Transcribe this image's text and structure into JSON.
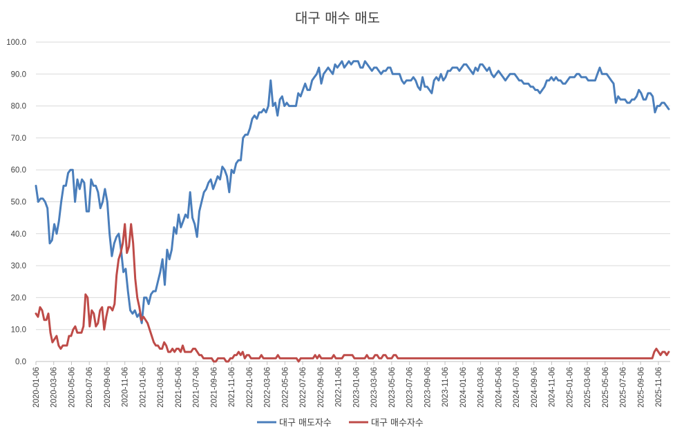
{
  "chart_data": {
    "type": "line",
    "title": "대구 매수 매도",
    "xlabel": "",
    "ylabel": "",
    "ylim": [
      0,
      100
    ],
    "ytick_labels": [
      "0.0",
      "10.0",
      "20.0",
      "30.0",
      "40.0",
      "50.0",
      "60.0",
      "70.0",
      "80.0",
      "90.0",
      "100.0"
    ],
    "x_tick_labels": [
      "2020-01-06",
      "2020-03-06",
      "2020-05-06",
      "2020-07-06",
      "2020-09-06",
      "2020-11-06",
      "2021-01-06",
      "2021-03-06",
      "2021-05-06",
      "2021-07-06",
      "2021-09-06",
      "2021-11-06",
      "2022-01-06",
      "2022-03-06",
      "2022-05-06",
      "2022-07-06",
      "2022-09-06",
      "2022-11-06",
      "2023-01-06",
      "2023-03-06",
      "2023-05-06",
      "2023-07-06",
      "2023-09-06",
      "2023-11-06",
      "2024-01-06",
      "2024-03-06",
      "2024-05-06",
      "2024-07-06",
      "2024-09-06",
      "2024-11-06",
      "2025-01-06",
      "2025-03-06",
      "2025-05-06",
      "2025-07-06",
      "2025-09-06",
      "2025-11-06"
    ],
    "legend_position": "bottom",
    "grid": true,
    "series": [
      {
        "name": "대구 매도자수",
        "color": "#4A7EBB",
        "values": [
          55,
          50,
          51,
          51,
          50,
          48,
          37,
          38,
          43,
          40,
          44,
          50,
          55,
          55,
          59,
          60,
          60,
          50,
          57,
          54,
          57,
          56,
          47,
          47,
          57,
          55,
          55,
          53,
          48,
          50,
          54,
          50,
          40,
          33,
          37,
          39,
          40,
          35,
          28,
          29,
          22,
          16,
          15,
          16,
          14,
          15,
          12,
          20,
          20,
          18,
          21,
          22,
          22,
          25,
          28,
          32,
          24,
          35,
          32,
          35,
          42,
          40,
          46,
          42,
          44,
          46,
          45,
          53,
          45,
          43,
          39,
          47,
          50,
          53,
          54,
          56,
          57,
          54,
          56,
          58,
          57,
          61,
          60,
          58,
          53,
          60,
          59,
          62,
          63,
          63,
          70,
          71,
          71,
          73,
          76,
          77,
          76,
          78,
          78,
          79,
          78,
          80,
          88,
          80,
          81,
          77,
          82,
          83,
          80,
          81,
          80,
          80,
          80,
          80,
          84,
          83,
          85,
          87,
          85,
          85,
          88,
          89,
          90,
          92,
          87,
          90,
          91,
          92,
          91,
          90,
          93,
          92,
          93,
          94,
          92,
          93,
          94,
          93,
          94,
          94,
          94,
          92,
          92,
          94,
          93,
          92,
          91,
          92,
          92,
          91,
          90,
          91,
          91,
          92,
          92,
          90,
          90,
          90,
          90,
          88,
          87,
          88,
          88,
          88,
          89,
          88,
          86,
          85,
          89,
          86,
          86,
          85,
          84,
          88,
          89,
          88,
          90,
          88,
          89,
          91,
          91,
          92,
          92,
          92,
          91,
          92,
          93,
          93,
          92,
          91,
          90,
          92,
          91,
          93,
          93,
          92,
          91,
          92,
          90,
          89,
          90,
          91,
          90,
          89,
          88,
          89,
          90,
          90,
          90,
          89,
          88,
          88,
          87,
          87,
          87,
          86,
          86,
          85,
          85,
          84,
          85,
          86,
          88,
          88,
          89,
          88,
          89,
          88,
          88,
          87,
          87,
          88,
          89,
          89,
          89,
          90,
          90,
          89,
          89,
          89,
          88,
          88,
          88,
          88,
          90,
          92,
          90,
          90,
          90,
          89,
          88,
          87,
          81,
          83,
          82,
          82,
          82,
          81,
          81,
          82,
          82,
          83,
          85,
          84,
          82,
          82,
          84,
          84,
          83,
          78,
          80,
          80,
          81,
          81,
          80,
          79
        ]
      },
      {
        "name": "대구 매수자수",
        "color": "#BE4B48",
        "values": [
          15,
          14,
          17,
          16,
          13,
          13,
          15,
          9,
          6,
          7,
          8,
          5,
          4,
          5,
          5,
          5,
          8,
          8,
          10,
          11,
          9,
          9,
          9,
          11,
          21,
          20,
          11,
          16,
          15,
          11,
          12,
          16,
          17,
          10,
          14,
          17,
          17,
          16,
          18,
          27,
          32,
          34,
          37,
          43,
          34,
          36,
          43,
          37,
          26,
          20,
          17,
          13,
          14,
          13,
          12,
          10,
          8,
          6,
          5,
          5,
          4,
          4,
          6,
          5,
          3,
          3,
          4,
          3,
          4,
          4,
          3,
          5,
          3,
          3,
          3,
          3,
          4,
          4,
          3,
          2,
          2,
          1,
          1,
          1,
          1,
          1,
          0,
          0,
          1,
          1,
          1,
          1,
          0,
          0,
          1,
          1,
          2,
          2,
          3,
          2,
          3,
          1,
          2,
          2,
          1,
          1,
          1,
          1,
          1,
          2,
          1,
          1,
          1,
          1,
          1,
          1,
          1,
          2,
          1,
          1,
          1,
          1,
          1,
          1,
          1,
          1,
          1,
          0,
          1,
          1,
          1,
          1,
          1,
          1,
          1,
          2,
          1,
          2,
          1,
          1,
          1,
          1,
          1,
          1,
          2,
          1,
          1,
          1,
          1,
          2,
          2,
          2,
          2,
          2,
          1,
          1,
          1,
          1,
          1,
          1,
          2,
          1,
          1,
          1,
          2,
          2,
          1,
          1,
          2,
          2,
          1,
          1,
          1,
          2,
          2,
          1,
          1,
          1,
          1,
          1,
          1,
          1,
          1,
          1,
          1,
          1,
          1,
          1,
          1,
          1,
          1,
          1,
          1,
          1,
          1,
          1,
          1,
          1,
          1,
          1,
          1,
          1,
          1,
          1,
          1,
          1,
          1,
          1,
          1,
          1,
          1,
          1,
          1,
          1,
          1,
          1,
          1,
          1,
          1,
          1,
          1,
          1,
          1,
          1,
          1,
          1,
          1,
          1,
          1,
          1,
          1,
          1,
          1,
          1,
          1,
          1,
          1,
          1,
          1,
          1,
          1,
          1,
          1,
          1,
          1,
          1,
          1,
          1,
          1,
          1,
          1,
          1,
          1,
          1,
          1,
          1,
          1,
          1,
          1,
          1,
          1,
          1,
          1,
          1,
          1,
          1,
          1,
          1,
          1,
          1,
          1,
          1,
          1,
          1,
          1,
          1,
          1,
          1,
          1,
          1,
          1,
          1,
          1,
          1,
          1,
          1,
          1,
          1,
          1,
          1,
          1,
          1,
          1,
          1,
          1,
          1,
          1,
          1,
          1,
          3,
          4,
          3,
          2,
          3,
          3,
          2,
          3
        ]
      }
    ]
  }
}
